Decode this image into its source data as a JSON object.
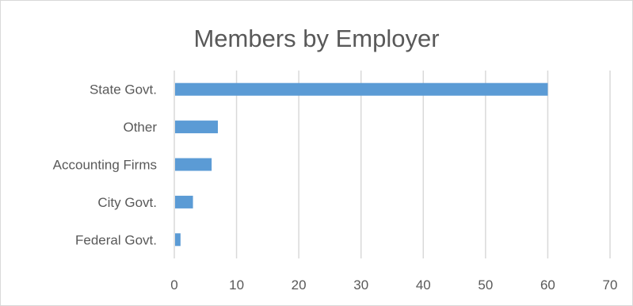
{
  "chart_data": {
    "type": "bar",
    "orientation": "horizontal",
    "title": "Members by Employer",
    "xlabel": "",
    "ylabel": "",
    "categories": [
      "State Govt.",
      "Other",
      "Accounting Firms",
      "City Govt.",
      "Federal Govt."
    ],
    "values": [
      60,
      7,
      6,
      3,
      1
    ],
    "xlim": [
      0,
      70
    ],
    "xticks": [
      0,
      10,
      20,
      30,
      40,
      50,
      60,
      70
    ],
    "grid": "vertical",
    "legend": "none",
    "colors": {
      "bar": "#5b9bd5",
      "grid": "#d9d9d9",
      "text": "#595959"
    }
  }
}
